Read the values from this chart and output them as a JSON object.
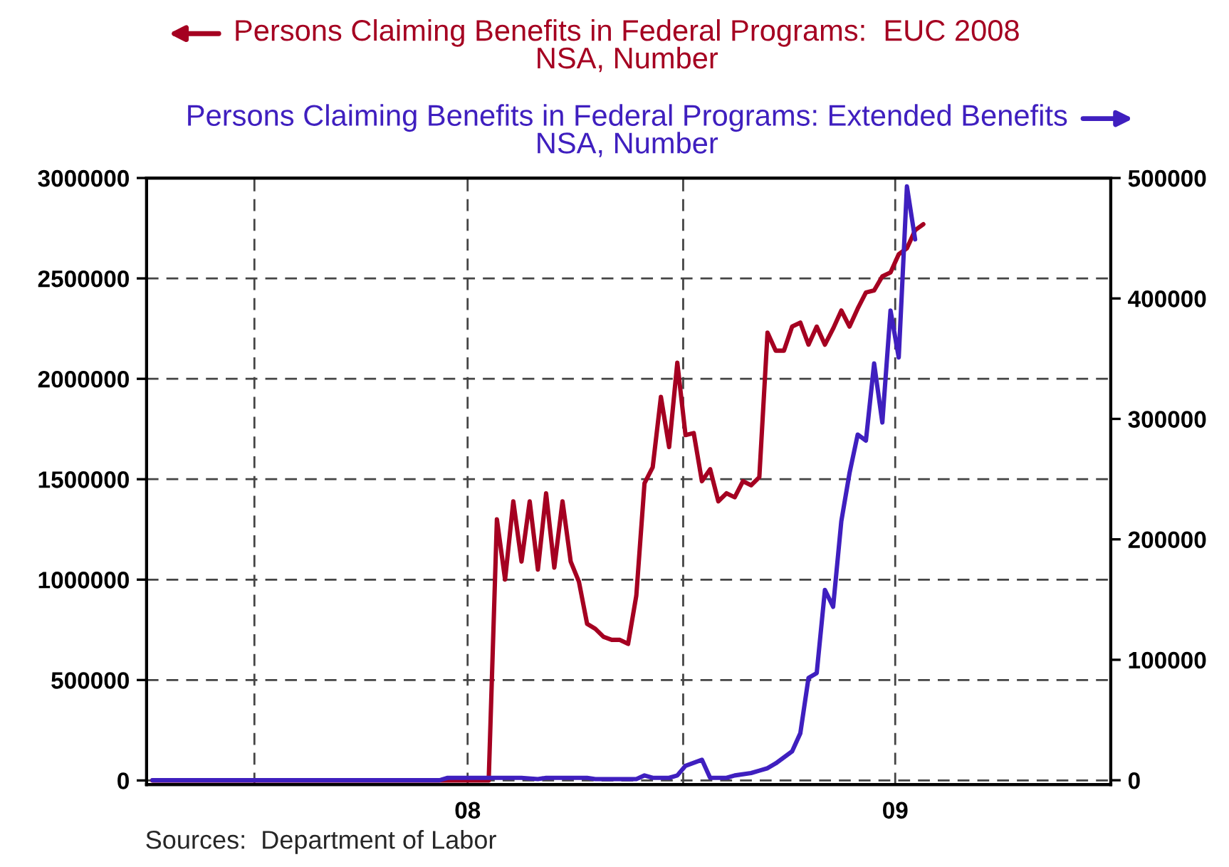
{
  "chart_data": {
    "type": "line",
    "legend": "top",
    "grid": true,
    "line_style": "solid",
    "marker": "none",
    "xlim": [
      "2007-10-01",
      "2010-01-01"
    ],
    "xticks": [
      {
        "value": "2007-10-01",
        "label": null
      },
      {
        "value": "2008-01-01",
        "label": null
      },
      {
        "value": "2008-07-01",
        "label": "08"
      },
      {
        "value": "2009-01-01",
        "label": null
      },
      {
        "value": "2009-07-01",
        "label": "09"
      },
      {
        "value": "2010-01-01",
        "label": null
      }
    ],
    "ylim": [
      -20000,
      3000000
    ],
    "yticks": [
      0,
      500000,
      1000000,
      1500000,
      2000000,
      2500000,
      3000000
    ],
    "y2lim": [
      -3500,
      500000
    ],
    "y2ticks": [
      0,
      100000,
      200000,
      300000,
      400000,
      500000
    ],
    "series": [
      {
        "name": "Persons Claiming Benefits in Federal Programs:  EUC 2008\nNSA, Number",
        "color": "#a50021",
        "axis": "y",
        "x": [
          "2007-10-06",
          "2008-07-19",
          "2008-07-26",
          "2008-08-02",
          "2008-08-09",
          "2008-08-16",
          "2008-08-23",
          "2008-08-30",
          "2008-09-06",
          "2008-09-13",
          "2008-09-20",
          "2008-09-27",
          "2008-10-04",
          "2008-10-11",
          "2008-10-18",
          "2008-10-25",
          "2008-11-01",
          "2008-11-08",
          "2008-11-15",
          "2008-11-22",
          "2008-11-29",
          "2008-12-06",
          "2008-12-13",
          "2008-12-20",
          "2008-12-27",
          "2009-01-03",
          "2009-01-10",
          "2009-01-17",
          "2009-01-24",
          "2009-01-31",
          "2009-02-07",
          "2009-02-14",
          "2009-02-21",
          "2009-02-28",
          "2009-03-07",
          "2009-03-14",
          "2009-03-21",
          "2009-03-28",
          "2009-04-04",
          "2009-04-11",
          "2009-04-18",
          "2009-04-25",
          "2009-05-02",
          "2009-05-09",
          "2009-05-16",
          "2009-05-23",
          "2009-05-30",
          "2009-06-06",
          "2009-06-13",
          "2009-06-20",
          "2009-06-27",
          "2009-07-04",
          "2009-07-11",
          "2009-07-18",
          "2009-07-25"
        ],
        "values": [
          0,
          0,
          1300000,
          1000000,
          1390000,
          1090000,
          1390000,
          1050000,
          1430000,
          1060000,
          1390000,
          1090000,
          990000,
          780000,
          755000,
          715000,
          700000,
          700000,
          680000,
          920000,
          1480000,
          1560000,
          1910000,
          1660000,
          2080000,
          1720000,
          1730000,
          1490000,
          1550000,
          1390000,
          1430000,
          1410000,
          1490000,
          1470000,
          1510000,
          2230000,
          2140000,
          2140000,
          2260000,
          2280000,
          2170000,
          2260000,
          2170000,
          2250000,
          2340000,
          2260000,
          2350000,
          2430000,
          2440000,
          2510000,
          2530000,
          2620000,
          2650000,
          2740000,
          2770000
        ]
      },
      {
        "name": "Persons Claiming Benefits in Federal Programs: Extended Benefits\nNSA, Number",
        "color": "#3f1fbf",
        "axis": "y2",
        "x": [
          "2007-10-06",
          "2008-06-07",
          "2008-06-14",
          "2008-08-16",
          "2008-08-30",
          "2008-09-06",
          "2008-10-11",
          "2008-10-18",
          "2008-11-22",
          "2008-11-29",
          "2008-12-06",
          "2008-12-20",
          "2008-12-27",
          "2009-01-03",
          "2009-01-17",
          "2009-01-24",
          "2009-02-07",
          "2009-02-14",
          "2009-02-28",
          "2009-03-07",
          "2009-03-14",
          "2009-03-21",
          "2009-03-28",
          "2009-04-04",
          "2009-04-11",
          "2009-04-18",
          "2009-04-25",
          "2009-05-02",
          "2009-05-09",
          "2009-05-16",
          "2009-05-23",
          "2009-05-30",
          "2009-06-06",
          "2009-06-13",
          "2009-06-20",
          "2009-06-27",
          "2009-07-04",
          "2009-07-11",
          "2009-07-18"
        ],
        "values": [
          0,
          0,
          2000,
          2000,
          1000,
          2000,
          2000,
          1000,
          1000,
          4000,
          2000,
          2000,
          4000,
          12000,
          17000,
          2000,
          2000,
          4000,
          6000,
          8000,
          10000,
          14000,
          19000,
          24000,
          39000,
          85000,
          89000,
          158000,
          144000,
          215000,
          255000,
          287000,
          282000,
          346000,
          297000,
          390000,
          351000,
          493000,
          449000
        ]
      }
    ],
    "annotations": [
      "Sources:  Department of Labor"
    ]
  }
}
